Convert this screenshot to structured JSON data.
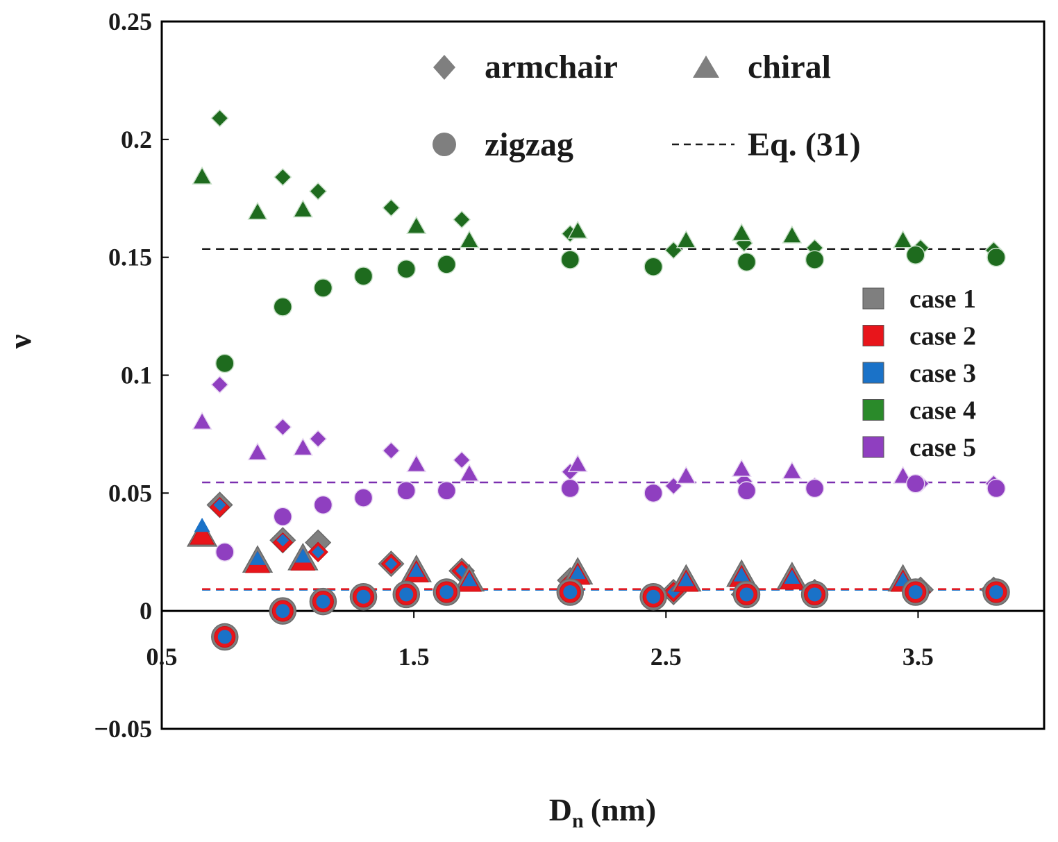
{
  "chart_data": {
    "type": "scatter",
    "xlabel": "D",
    "xlabel_subscript": "n",
    "xlabel_unit": "(nm)",
    "ylabel": "ν",
    "xlim": [
      0.5,
      4.0
    ],
    "ylim": [
      -0.05,
      0.25
    ],
    "x_ticks": [
      0.5,
      1.5,
      2.5,
      3.5
    ],
    "x_tick_labels": [
      "0.5",
      "1.5",
      "2.5",
      "3.5"
    ],
    "y_ticks": [
      -0.05,
      0,
      0.05,
      0.1,
      0.15,
      0.2,
      0.25
    ],
    "y_tick_labels": [
      "−0.05",
      "0",
      "0.05",
      "0.1",
      "0.15",
      "0.2",
      "0.25"
    ],
    "grid": false,
    "marker_legend": {
      "placement": "top",
      "items": [
        {
          "label": "armchair",
          "marker": "diamond"
        },
        {
          "label": "chiral",
          "marker": "triangle"
        },
        {
          "label": "zigzag",
          "marker": "circle"
        },
        {
          "label": "Eq. (31)",
          "marker": "dashed-line"
        }
      ]
    },
    "case_legend": {
      "placement": "right",
      "items": [
        {
          "label": "case 1",
          "color": "#7f7f7f"
        },
        {
          "label": "case 2",
          "color": "#e8151b"
        },
        {
          "label": "case 3",
          "color": "#1a72c8"
        },
        {
          "label": "case 4",
          "color": "#2a8a2a"
        },
        {
          "label": "case 5",
          "color": "#8f3fc0"
        }
      ]
    },
    "eq31_lines": [
      {
        "case": "case 4",
        "y": 0.1535,
        "color": "#1a1a1a"
      },
      {
        "case": "case 5",
        "y": 0.0545,
        "color": "#7b2fb0"
      },
      {
        "case": "case 1-3",
        "y": 0.0093,
        "color": "#e8151b"
      }
    ],
    "series": [
      {
        "case": "case 4",
        "marker": "diamond",
        "x": [
          0.73,
          0.98,
          1.12,
          1.41,
          1.69,
          2.12,
          2.53,
          2.81,
          3.09,
          3.51,
          3.8
        ],
        "y": [
          0.209,
          0.184,
          0.178,
          0.171,
          0.166,
          0.16,
          0.153,
          0.156,
          0.154,
          0.154,
          0.153
        ]
      },
      {
        "case": "case 4",
        "marker": "triangle",
        "x": [
          0.66,
          0.88,
          1.06,
          1.51,
          1.72,
          2.15,
          2.58,
          2.8,
          3.0,
          3.44
        ],
        "y": [
          0.184,
          0.169,
          0.17,
          0.163,
          0.157,
          0.161,
          0.157,
          0.16,
          0.159,
          0.157
        ]
      },
      {
        "case": "case 4",
        "marker": "circle",
        "x": [
          0.75,
          0.98,
          1.14,
          1.3,
          1.47,
          1.63,
          2.12,
          2.45,
          2.82,
          3.09,
          3.49,
          3.81
        ],
        "y": [
          0.105,
          0.129,
          0.137,
          0.142,
          0.145,
          0.147,
          0.149,
          0.146,
          0.148,
          0.149,
          0.151,
          0.15
        ]
      },
      {
        "case": "case 5",
        "marker": "diamond",
        "x": [
          0.73,
          0.98,
          1.12,
          1.41,
          1.69,
          2.12,
          2.53,
          2.81,
          3.09,
          3.51,
          3.8
        ],
        "y": [
          0.096,
          0.078,
          0.073,
          0.068,
          0.064,
          0.059,
          0.053,
          0.055,
          0.053,
          0.054,
          0.054
        ]
      },
      {
        "case": "case 5",
        "marker": "triangle",
        "x": [
          0.66,
          0.88,
          1.06,
          1.51,
          1.72,
          2.15,
          2.58,
          2.8,
          3.0,
          3.44
        ],
        "y": [
          0.08,
          0.067,
          0.069,
          0.062,
          0.058,
          0.062,
          0.057,
          0.06,
          0.059,
          0.057
        ]
      },
      {
        "case": "case 5",
        "marker": "circle",
        "x": [
          0.75,
          0.98,
          1.14,
          1.3,
          1.47,
          1.63,
          2.12,
          2.45,
          2.82,
          3.09,
          3.49,
          3.81
        ],
        "y": [
          0.025,
          0.04,
          0.045,
          0.048,
          0.051,
          0.051,
          0.052,
          0.05,
          0.051,
          0.052,
          0.054,
          0.052
        ]
      },
      {
        "case": "case 1",
        "marker": "diamond",
        "x": [
          0.73,
          0.98,
          1.12,
          1.41,
          1.69,
          2.12,
          2.53,
          2.81,
          3.09,
          3.51,
          3.8
        ],
        "y": [
          0.045,
          0.03,
          0.029,
          0.02,
          0.017,
          0.013,
          0.008,
          0.007,
          0.008,
          0.009,
          0.009
        ]
      },
      {
        "case": "case 2",
        "marker": "diamond",
        "x": [
          0.73,
          0.98,
          1.12,
          1.41,
          1.69,
          2.12,
          2.53,
          2.81,
          3.09,
          3.51,
          3.8
        ],
        "y": [
          0.044,
          0.029,
          0.025,
          0.02,
          0.017,
          0.012,
          0.008,
          0.007,
          0.007,
          0.008,
          0.008
        ]
      },
      {
        "case": "case 3",
        "marker": "diamond",
        "x": [
          0.73,
          0.98,
          1.12,
          1.41,
          1.69,
          2.12,
          2.53,
          2.81,
          3.09,
          3.51,
          3.8
        ],
        "y": [
          0.045,
          0.03,
          0.025,
          0.02,
          0.017,
          0.012,
          0.008,
          0.007,
          0.007,
          0.008,
          0.008
        ]
      },
      {
        "case": "case 1",
        "marker": "triangle",
        "x": [
          0.66,
          0.88,
          1.06,
          1.51,
          1.72,
          2.15,
          2.58,
          2.8,
          3.0,
          3.44
        ],
        "y": [
          0.032,
          0.021,
          0.022,
          0.017,
          0.013,
          0.016,
          0.013,
          0.015,
          0.014,
          0.013
        ]
      },
      {
        "case": "case 2",
        "marker": "triangle",
        "x": [
          0.66,
          0.88,
          1.06,
          1.51,
          1.72,
          2.15,
          2.58,
          2.8,
          3.0,
          3.44
        ],
        "y": [
          0.032,
          0.02,
          0.021,
          0.016,
          0.012,
          0.015,
          0.012,
          0.014,
          0.013,
          0.012
        ]
      },
      {
        "case": "case 3",
        "marker": "triangle",
        "x": [
          0.66,
          0.88,
          1.06,
          1.51,
          1.72,
          2.15,
          2.58,
          2.8,
          3.0,
          3.44
        ],
        "y": [
          0.036,
          0.022,
          0.023,
          0.017,
          0.013,
          0.016,
          0.013,
          0.015,
          0.014,
          0.013
        ]
      },
      {
        "case": "case 1",
        "marker": "circle",
        "x": [
          0.75,
          0.98,
          1.14,
          1.3,
          1.47,
          1.63,
          2.12,
          2.45,
          2.82,
          3.09,
          3.49,
          3.81
        ],
        "y": [
          -0.011,
          0.0,
          0.004,
          0.006,
          0.007,
          0.008,
          0.008,
          0.006,
          0.007,
          0.007,
          0.008,
          0.008
        ]
      },
      {
        "case": "case 2",
        "marker": "circle",
        "x": [
          0.75,
          0.98,
          1.14,
          1.3,
          1.47,
          1.63,
          2.12,
          2.45,
          2.82,
          3.09,
          3.49,
          3.81
        ],
        "y": [
          -0.011,
          0.0,
          0.004,
          0.006,
          0.007,
          0.008,
          0.008,
          0.006,
          0.007,
          0.007,
          0.008,
          0.008
        ]
      },
      {
        "case": "case 3",
        "marker": "circle",
        "x": [
          0.75,
          0.98,
          1.14,
          1.3,
          1.47,
          1.63,
          2.12,
          2.45,
          2.82,
          3.09,
          3.49,
          3.81
        ],
        "y": [
          -0.011,
          0.0,
          0.004,
          0.006,
          0.007,
          0.008,
          0.008,
          0.006,
          0.007,
          0.007,
          0.008,
          0.008
        ]
      }
    ]
  }
}
